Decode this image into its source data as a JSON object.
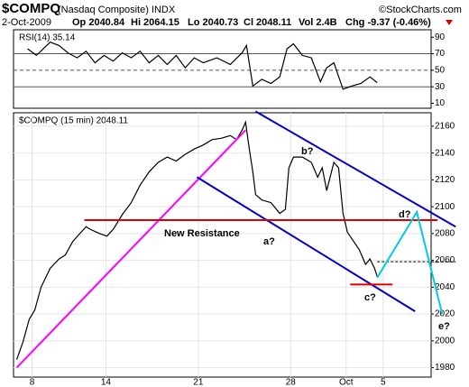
{
  "header": {
    "symbol": "$COMPQ",
    "name": "(Nasdaq Composite) INDX",
    "copyright": "©StockCharts.com",
    "date": "2-Oct-2009",
    "open": "Op 2040.84",
    "high": "Hi 2064.15",
    "low": "Lo 2040.73",
    "close": "Cl 2048.11",
    "volume": "Vol 2.4B",
    "change": "Chg -9.37 (-0.46%)"
  },
  "chart_data": [
    {
      "type": "line",
      "title": "RSI(14) 35.14",
      "color": "#000000",
      "xlim": [
        -1,
        21.6
      ],
      "ylim": [
        4,
        99
      ],
      "yticks": [
        90,
        70,
        50,
        30,
        10
      ],
      "reference_lines": [
        {
          "value": 70
        },
        {
          "value": 50,
          "dash": true
        },
        {
          "value": 30
        }
      ],
      "x": [
        -0.24,
        0.24,
        0.98,
        1.46,
        1.95,
        2.44,
        2.93,
        3.41,
        3.9,
        4.39,
        4.88,
        5.37,
        5.85,
        6.34,
        6.83,
        7.32,
        7.8,
        8.29,
        8.78,
        9.27,
        10.0,
        10.73,
        11.37,
        11.61,
        11.95,
        12.44,
        12.93,
        13.41,
        13.8,
        14.15,
        14.63,
        15.12,
        15.61,
        15.95,
        16.34,
        16.83,
        17.32,
        17.8,
        18.29,
        18.68
      ],
      "values": [
        76,
        68,
        84,
        80,
        71,
        65,
        73,
        59,
        68,
        61,
        71,
        65,
        73,
        59,
        68,
        57,
        68,
        53,
        65,
        59,
        65,
        57,
        71,
        80,
        31,
        39,
        34,
        42,
        76,
        82,
        68,
        65,
        36,
        53,
        59,
        27,
        31,
        34,
        42,
        35
      ]
    },
    {
      "type": "line",
      "title": "$COMPQ (15 min) 2048.11",
      "color": "#000000",
      "xlim": [
        -1,
        21.6
      ],
      "ylim": [
        1973,
        2170
      ],
      "grid": true,
      "yticks": [
        2160,
        2140,
        2120,
        2100,
        2080,
        2060,
        2040,
        2020,
        2000,
        1980
      ],
      "xticks": [
        {
          "value": 0,
          "label": "8"
        },
        {
          "value": 4,
          "label": "14"
        },
        {
          "value": 9,
          "label": "21"
        },
        {
          "value": 14,
          "label": "28"
        },
        {
          "value": 17,
          "label": "Oct"
        },
        {
          "value": 19,
          "label": "5"
        }
      ],
      "x": [
        -0.83,
        -0.49,
        -0.15,
        0.15,
        0.49,
        0.98,
        1.46,
        1.8,
        2.2,
        2.59,
        2.93,
        3.17,
        3.66,
        4.05,
        4.39,
        4.88,
        5.37,
        5.85,
        6.34,
        6.83,
        7.32,
        7.8,
        8.29,
        8.78,
        9.27,
        9.76,
        10.24,
        10.73,
        11.07,
        11.37,
        11.56,
        11.76,
        11.95,
        12.1,
        12.44,
        12.93,
        13.41,
        13.71,
        13.9,
        14.15,
        14.63,
        15.12,
        15.46,
        15.71,
        15.95,
        16.34,
        16.59,
        16.83,
        17.07,
        17.41,
        17.71,
        18.05,
        18.29,
        18.54,
        18.68
      ],
      "values": [
        1986,
        1999,
        2016,
        2023,
        2040,
        2054,
        2061,
        2064,
        2074,
        2080,
        2085,
        2083,
        2080,
        2078,
        2083,
        2094,
        2103,
        2116,
        2126,
        2133,
        2137,
        2134,
        2139,
        2143,
        2146,
        2150,
        2151,
        2153,
        2150,
        2157,
        2163,
        2143,
        2126,
        2109,
        2105,
        2103,
        2095,
        2098,
        2129,
        2137,
        2137,
        2133,
        2122,
        2129,
        2112,
        2133,
        2129,
        2095,
        2081,
        2074,
        2068,
        2057,
        2061,
        2054,
        2048
      ],
      "overlays": [
        {
          "color": "#ff00ff",
          "x": [
            -0.83,
            11.56
          ],
          "values": [
            1980,
            2157
          ]
        },
        {
          "color": "#0000cc",
          "x": [
            12.1,
            22.93
          ],
          "values": [
            2171,
            2085
          ]
        },
        {
          "color": "#0000cc",
          "x": [
            8.93,
            20.73
          ],
          "values": [
            2122,
            2022
          ]
        },
        {
          "color": "#dd0000",
          "x": [
            2.83,
            21.95
          ],
          "values": [
            2090,
            2090
          ]
        },
        {
          "color": "#dd0000",
          "x": [
            17.22,
            19.51
          ],
          "values": [
            2042,
            2042
          ]
        },
        {
          "color": "#000000",
          "dash": true,
          "x": [
            18.68,
            22.93
          ],
          "values": [
            2059,
            2059
          ]
        },
        {
          "color": "#00ccdd",
          "x": [
            18.68,
            20.83,
            22.2
          ],
          "values": [
            2047,
            2096,
            2020
          ]
        }
      ],
      "annotations": [
        {
          "text": "New Resistance",
          "color": "#dd0000"
        },
        {
          "text": "a?",
          "color": "#0000cc"
        },
        {
          "text": "b?",
          "color": "#0000cc"
        },
        {
          "text": "c?",
          "color": "#0000cc"
        },
        {
          "text": "d?",
          "color": "#0000cc"
        },
        {
          "text": "e?",
          "color": "#0000cc"
        }
      ]
    }
  ]
}
